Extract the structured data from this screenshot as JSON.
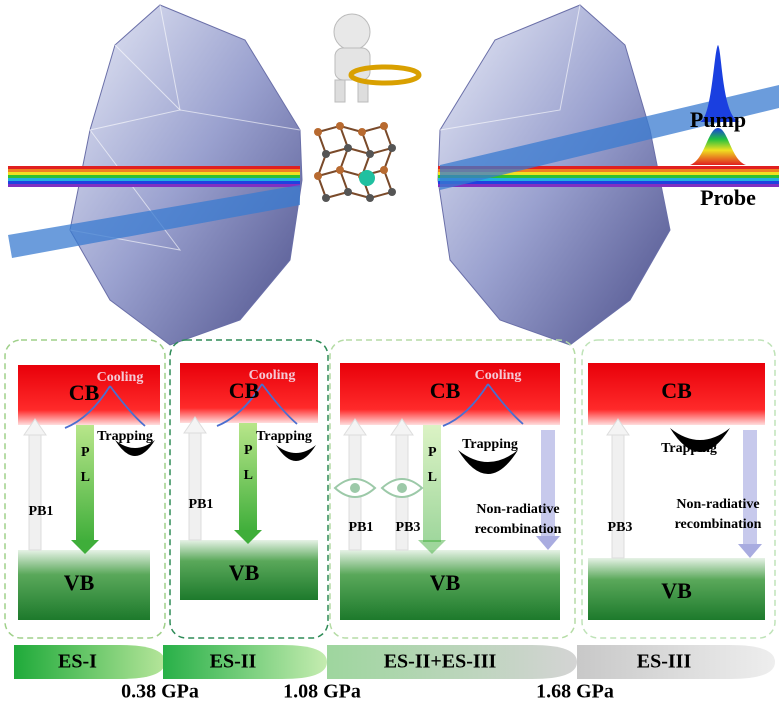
{
  "top": {
    "pump": "Pump",
    "probe": "Probe"
  },
  "panels": [
    {
      "cb": "CB",
      "vb": "VB",
      "cooling": "Cooling",
      "trapping": "Trapping",
      "pl": "PL",
      "pb": [
        "PB1"
      ]
    },
    {
      "cb": "CB",
      "vb": "VB",
      "cooling": "Cooling",
      "trapping": "Trapping",
      "pl": "PL",
      "pb": [
        "PB1"
      ]
    },
    {
      "cb": "CB",
      "vb": "VB",
      "cooling": "Cooling",
      "trapping": "Trapping",
      "pl": "PL",
      "pb": [
        "PB1",
        "PB3"
      ],
      "nonradiative": [
        "Non-radiative",
        "recombination"
      ]
    },
    {
      "cb": "CB",
      "vb": "VB",
      "trapping": "Trapping",
      "pb": [
        "PB3"
      ],
      "nonradiative": [
        "Non-radiative",
        "recombination"
      ]
    }
  ],
  "stages": [
    "ES-I",
    "ES-II",
    "ES-II+ES-III",
    "ES-III"
  ],
  "pressures": [
    "0.38 GPa",
    "1.08 GPa",
    "1.68 GPa"
  ]
}
